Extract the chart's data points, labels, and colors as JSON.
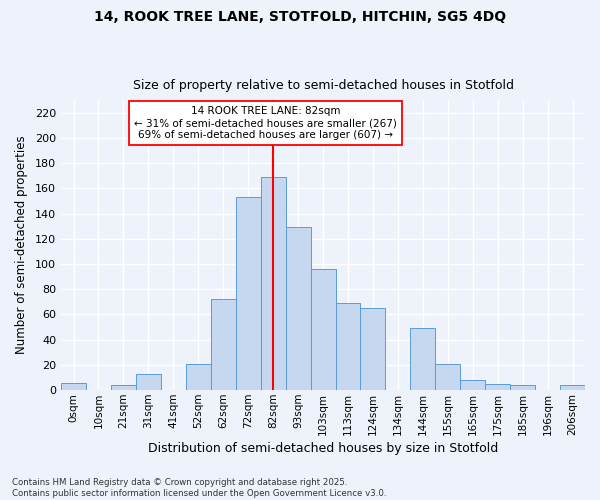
{
  "title1": "14, ROOK TREE LANE, STOTFOLD, HITCHIN, SG5 4DQ",
  "title2": "Size of property relative to semi-detached houses in Stotfold",
  "xlabel": "Distribution of semi-detached houses by size in Stotfold",
  "ylabel": "Number of semi-detached properties",
  "categories": [
    "0sqm",
    "10sqm",
    "21sqm",
    "31sqm",
    "41sqm",
    "52sqm",
    "62sqm",
    "72sqm",
    "82sqm",
    "93sqm",
    "103sqm",
    "113sqm",
    "124sqm",
    "134sqm",
    "144sqm",
    "155sqm",
    "165sqm",
    "175sqm",
    "185sqm",
    "196sqm",
    "206sqm"
  ],
  "values": [
    6,
    0,
    4,
    13,
    0,
    21,
    72,
    153,
    169,
    129,
    96,
    69,
    65,
    0,
    49,
    21,
    8,
    5,
    4,
    0,
    4
  ],
  "bar_color": "#c5d8f0",
  "bar_edge_color": "#5b9bd5",
  "vline_x": 8,
  "vline_color": "red",
  "annotation_text": "14 ROOK TREE LANE: 82sqm\n← 31% of semi-detached houses are smaller (267)\n69% of semi-detached houses are larger (607) →",
  "annotation_box_color": "white",
  "annotation_box_edge_color": "red",
  "ylim": [
    0,
    230
  ],
  "yticks": [
    0,
    20,
    40,
    60,
    80,
    100,
    120,
    140,
    160,
    180,
    200,
    220
  ],
  "background_color": "#eef2fa",
  "grid_color": "white",
  "footnote": "Contains HM Land Registry data © Crown copyright and database right 2025.\nContains public sector information licensed under the Open Government Licence v3.0."
}
